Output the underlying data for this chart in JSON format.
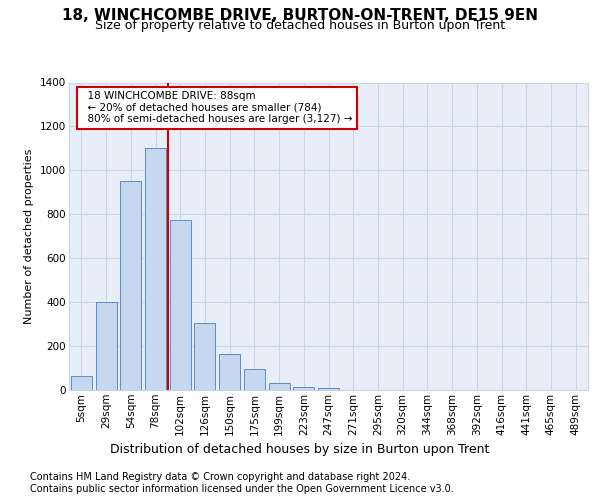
{
  "title1": "18, WINCHCOMBE DRIVE, BURTON-ON-TRENT, DE15 9EN",
  "title2": "Size of property relative to detached houses in Burton upon Trent",
  "xlabel": "Distribution of detached houses by size in Burton upon Trent",
  "ylabel": "Number of detached properties",
  "footnote1": "Contains HM Land Registry data © Crown copyright and database right 2024.",
  "footnote2": "Contains public sector information licensed under the Open Government Licence v3.0.",
  "bar_color": "#c5d8f0",
  "bar_edge_color": "#5b8ec4",
  "grid_color": "#c8d4e8",
  "background_color": "#e8eef8",
  "annotation_box_color": "#cc0000",
  "vline_color": "#cc0000",
  "categories": [
    "5sqm",
    "29sqm",
    "54sqm",
    "78sqm",
    "102sqm",
    "126sqm",
    "150sqm",
    "175sqm",
    "199sqm",
    "223sqm",
    "247sqm",
    "271sqm",
    "295sqm",
    "320sqm",
    "344sqm",
    "368sqm",
    "392sqm",
    "416sqm",
    "441sqm",
    "465sqm",
    "489sqm"
  ],
  "values": [
    65,
    400,
    950,
    1100,
    775,
    305,
    165,
    95,
    30,
    15,
    10,
    0,
    0,
    0,
    0,
    0,
    0,
    0,
    0,
    0,
    0
  ],
  "ylim": [
    0,
    1400
  ],
  "yticks": [
    0,
    200,
    400,
    600,
    800,
    1000,
    1200,
    1400
  ],
  "vline_x": 3.5,
  "annotation_text": "  18 WINCHCOMBE DRIVE: 88sqm\n  ← 20% of detached houses are smaller (784)\n  80% of semi-detached houses are larger (3,127) →",
  "title1_fontsize": 11,
  "title2_fontsize": 9,
  "ylabel_fontsize": 8,
  "xlabel_fontsize": 9,
  "footnote_fontsize": 7,
  "tick_fontsize": 7.5
}
